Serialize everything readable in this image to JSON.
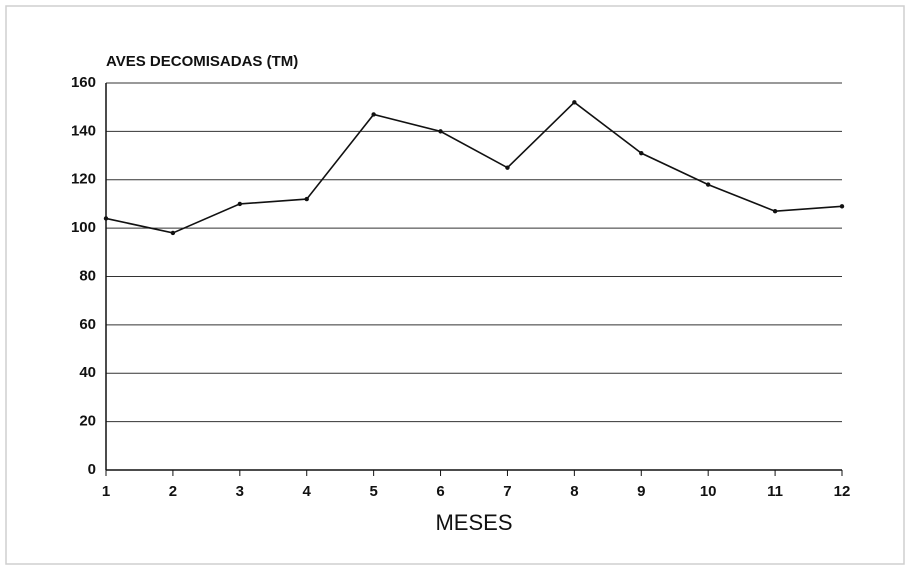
{
  "chart_data": {
    "type": "line",
    "ylabel": "AVES DECOMISADAS (TM)",
    "xlabel": "MESES",
    "x": [
      1,
      2,
      3,
      4,
      5,
      6,
      7,
      8,
      9,
      10,
      11,
      12
    ],
    "series": [
      {
        "color": "#111111",
        "values": [
          104,
          98,
          110,
          112,
          147,
          140,
          125,
          152,
          131,
          118,
          107,
          109
        ]
      }
    ],
    "xlim": [
      1,
      12
    ],
    "xticks": [
      1,
      2,
      3,
      4,
      5,
      6,
      7,
      8,
      9,
      10,
      11,
      12
    ],
    "ylim": [
      0,
      160
    ],
    "yticks": [
      0,
      20,
      40,
      60,
      80,
      100,
      120,
      140,
      160
    ],
    "grid": true
  }
}
